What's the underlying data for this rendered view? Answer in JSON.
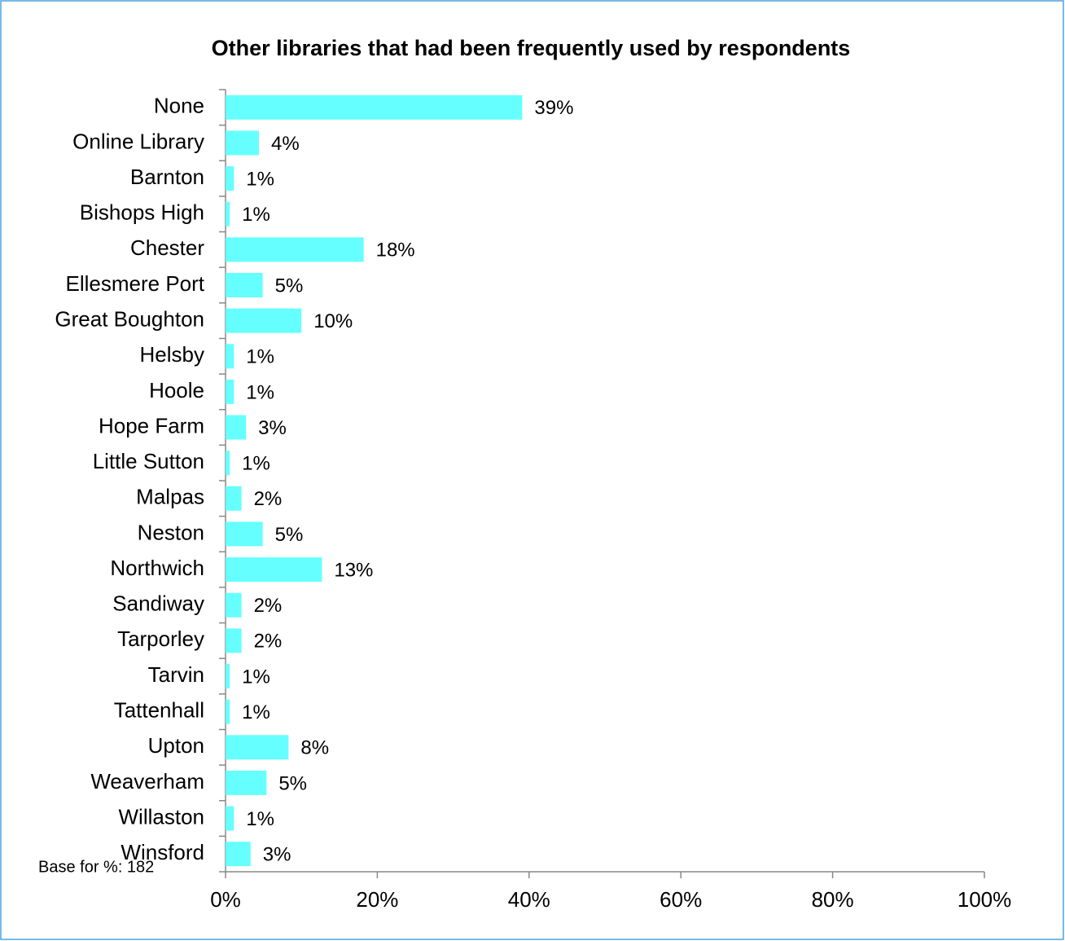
{
  "chart_data": {
    "type": "barh",
    "title": "Other libraries that had been frequently used by respondents",
    "annotation": "Base for %: 182",
    "categories": [
      "None",
      "Online Library",
      "Barnton",
      "Bishops High",
      "Chester",
      "Ellesmere Port",
      "Great Boughton",
      "Helsby",
      "Hoole",
      "Hope Farm",
      "Little Sutton",
      "Malpas",
      "Neston",
      "Northwich",
      "Sandiway",
      "Tarporley",
      "Tarvin",
      "Tattenhall",
      "Upton",
      "Weaverham",
      "Willaston",
      "Winsford"
    ],
    "values": [
      39.1,
      4.4,
      1.1,
      0.55,
      18.2,
      4.9,
      10.0,
      1.1,
      1.1,
      2.7,
      0.55,
      2.1,
      4.9,
      12.7,
      2.1,
      2.1,
      0.55,
      0.55,
      8.3,
      5.4,
      1.1,
      3.3
    ],
    "value_labels": [
      "39%",
      "4%",
      "1%",
      "1%",
      "18%",
      "5%",
      "10%",
      "1%",
      "1%",
      "3%",
      "1%",
      "2%",
      "5%",
      "13%",
      "2%",
      "2%",
      "1%",
      "1%",
      "8%",
      "5%",
      "1%",
      "3%"
    ],
    "color": "#66ffff",
    "xlim": [
      0,
      100
    ],
    "xticks": [
      {
        "value": 0,
        "label": "0%"
      },
      {
        "value": 20,
        "label": "20%"
      },
      {
        "value": 40,
        "label": "40%"
      },
      {
        "value": 60,
        "label": "60%"
      },
      {
        "value": 80,
        "label": "80%"
      },
      {
        "value": 100,
        "label": "100%"
      }
    ]
  }
}
